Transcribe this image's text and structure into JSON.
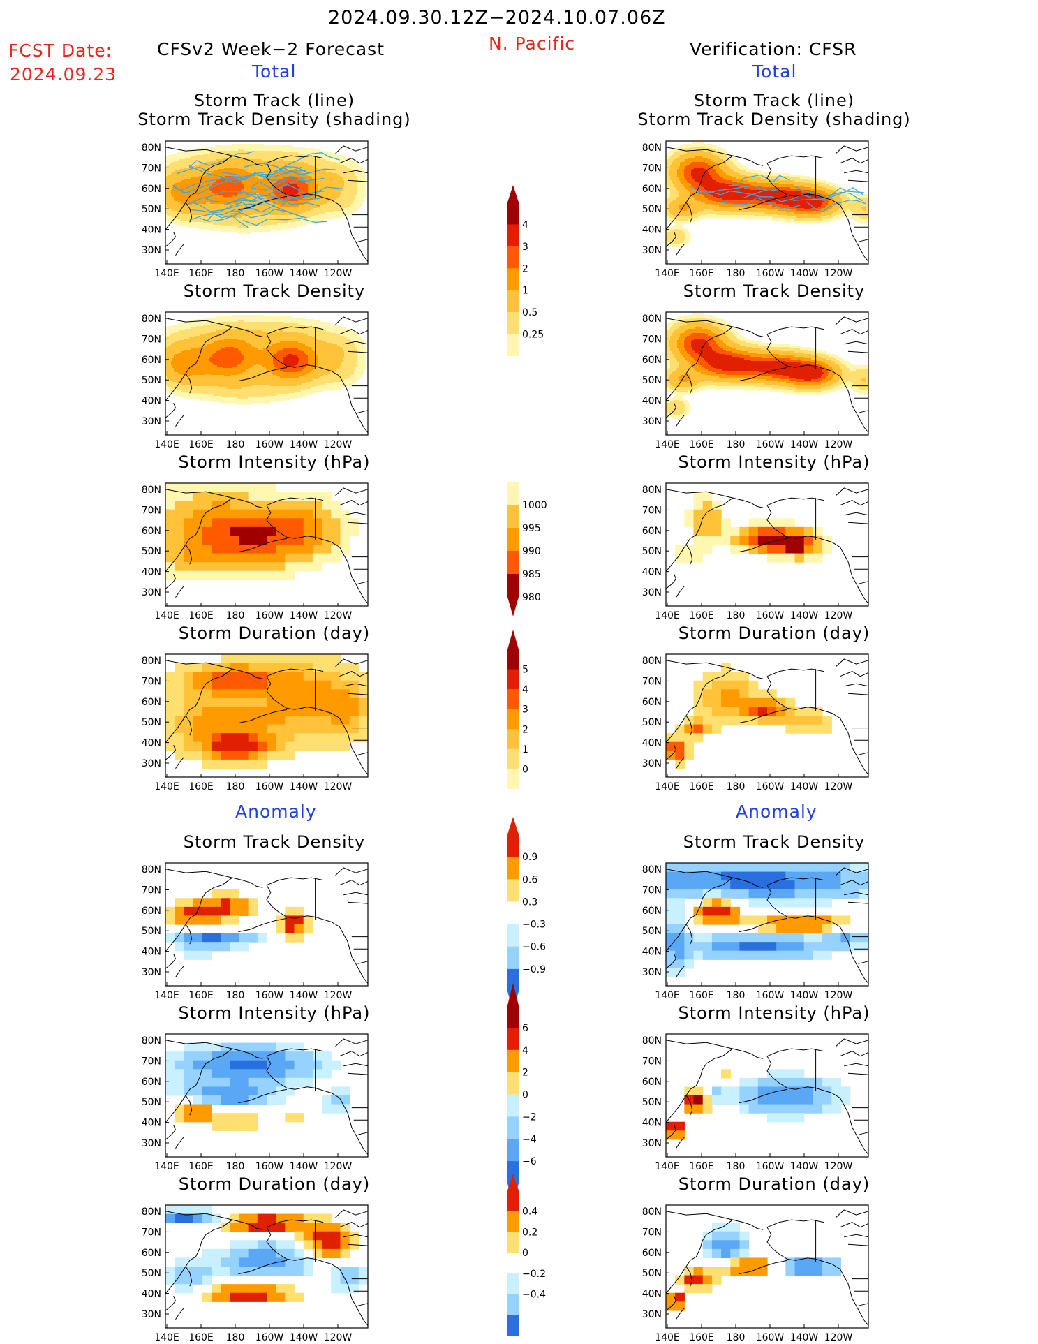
{
  "header": {
    "period": "2024.09.30.12Z−2024.10.07.06Z",
    "region": "N. Pacific",
    "fcst_label": "FCST Date:",
    "fcst_date": "2024.09.23",
    "left_title": "CFSv2 Week−2 Forecast",
    "right_title": "Verification: CFSR",
    "left_total": "Total",
    "right_total": "Total",
    "left_anomaly": "Anomaly",
    "right_anomaly": "Anomaly"
  },
  "axes": {
    "lat_ticks": [
      "80N",
      "70N",
      "60N",
      "50N",
      "40N",
      "30N"
    ],
    "lon_ticks": [
      "140E",
      "160E",
      "180",
      "160W",
      "140W",
      "120W"
    ]
  },
  "panels": {
    "track": {
      "title_line1": "Storm Track (line)",
      "title_line2": "Storm Track Density (shading)"
    },
    "density": {
      "title": "Storm Track Density"
    },
    "intensity": {
      "title": "Storm Intensity (hPa)"
    },
    "duration": {
      "title": "Storm Duration (day)"
    },
    "anom_density": {
      "title": "Storm Track Density"
    },
    "anom_intensity": {
      "title": "Storm Intensity (hPa)"
    },
    "anom_duration": {
      "title": "Storm Duration (day)"
    }
  },
  "colors": {
    "land_line": "#000000",
    "track_line": "#3fa7e0",
    "warm": [
      "#fff6b0",
      "#ffdf70",
      "#ffc238",
      "#ff9a00",
      "#ff5a00",
      "#e02000",
      "#a00000"
    ],
    "cool": [
      "#c8f0ff",
      "#96d2ff",
      "#5aa8f5",
      "#2a6fe0",
      "#0b4fd4"
    ]
  },
  "chart_data": {
    "type": "heatmap",
    "colorbars": [
      {
        "name": "track_density",
        "labels": [
          "4",
          "3",
          "2",
          "1",
          "0.5",
          "0.25"
        ]
      },
      {
        "name": "intensity",
        "labels": [
          "1000",
          "995",
          "990",
          "985",
          "980"
        ]
      },
      {
        "name": "duration",
        "labels": [
          "5",
          "4",
          "3",
          "2",
          "1",
          "0"
        ]
      },
      {
        "name": "anom_density",
        "labels": [
          "0.9",
          "0.6",
          "0.3",
          "−0.3",
          "−0.6",
          "−0.9"
        ]
      },
      {
        "name": "anom_intensity",
        "labels": [
          "6",
          "4",
          "2",
          "0",
          "−2",
          "−4",
          "−6"
        ]
      },
      {
        "name": "anom_duration",
        "labels": [
          "0.4",
          "0.2",
          "0",
          "−0.2",
          "−0.4"
        ]
      }
    ],
    "lon_range": [
      "140E",
      "110W"
    ],
    "lat_range": [
      "25N",
      "85N"
    ]
  }
}
